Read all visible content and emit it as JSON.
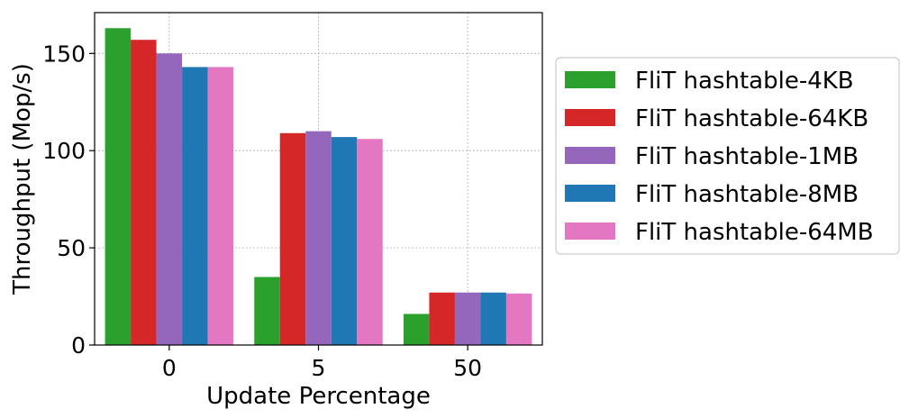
{
  "chart_data": {
    "type": "bar",
    "xlabel": "Update Percentage",
    "ylabel": "Throughput (Mop/s)",
    "categories": [
      "0",
      "5",
      "50"
    ],
    "ylim": [
      0,
      171
    ],
    "yticks": [
      0,
      50,
      100,
      150
    ],
    "grid": true,
    "legend_position": "right",
    "series": [
      {
        "name": "FliT hashtable-4KB",
        "color": "#2ca02c",
        "values": [
          163,
          35,
          16
        ]
      },
      {
        "name": "FliT hashtable-64KB",
        "color": "#d62728",
        "values": [
          157,
          109,
          27
        ]
      },
      {
        "name": "FliT hashtable-1MB",
        "color": "#9467bd",
        "values": [
          150,
          110,
          27
        ]
      },
      {
        "name": "FliT hashtable-8MB",
        "color": "#1f77b4",
        "values": [
          143,
          107,
          27
        ]
      },
      {
        "name": "FliT hashtable-64MB",
        "color": "#e377c2",
        "values": [
          143,
          106,
          26.5
        ]
      }
    ]
  }
}
